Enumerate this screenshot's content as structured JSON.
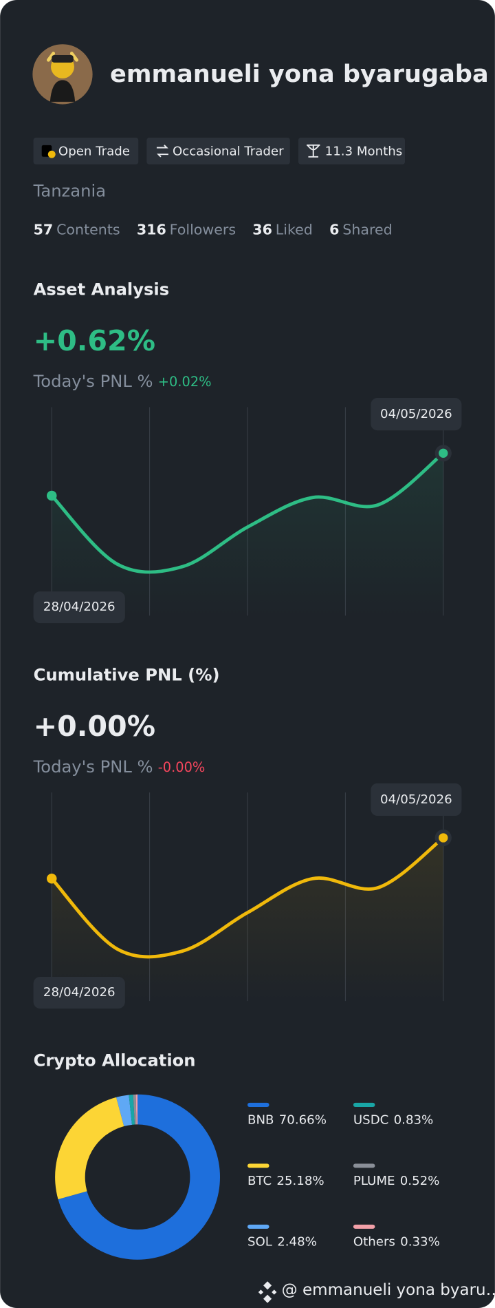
{
  "profile": {
    "name": "emmanueli yona byarugaba",
    "badges": [
      "Open Trade",
      "Occasional Trader",
      "11.3 Months"
    ],
    "country": "Tanzania",
    "stats": [
      {
        "value": 57,
        "label": "Contents"
      },
      {
        "value": 316,
        "label": "Followers"
      },
      {
        "value": 36,
        "label": "Liked"
      },
      {
        "value": 6,
        "label": "Shared"
      }
    ]
  },
  "chart_data": [
    {
      "type": "line",
      "title": "Asset Analysis",
      "headline": "+0.62%",
      "subtitle": "Today's PNL %",
      "today_pnl": "+0.02%",
      "pnl_color": "#2ebd85",
      "categories": [
        "28/04/2026",
        null,
        null,
        null,
        null,
        null,
        "04/05/2026"
      ],
      "values": [
        0.39,
        0.02,
        0.005,
        0.22,
        0.38,
        0.34,
        0.62
      ],
      "color": "#2ebd85",
      "ylim": [
        -0.26,
        0.87
      ]
    },
    {
      "type": "line",
      "title": "Cumulative PNL (%)",
      "headline": "+0.00%",
      "subtitle": "Today's PNL %",
      "today_pnl": "-0.00%",
      "pnl_color": "#f6465d",
      "categories": [
        "28/04/2026",
        null,
        null,
        null,
        null,
        null,
        "04/05/2026"
      ],
      "values": [
        -0.0018,
        -0.0049,
        -0.005,
        -0.0033,
        -0.0018,
        -0.0022,
        0.0
      ],
      "color": "#f0b90b",
      "ylim": [
        -0.0072,
        0.002
      ]
    },
    {
      "type": "pie",
      "title": "Crypto Allocation",
      "categories": [
        "BNB",
        "BTC",
        "SOL",
        "USDC",
        "PLUME",
        "Others"
      ],
      "values": [
        70.66,
        25.18,
        2.48,
        0.83,
        0.52,
        0.33
      ],
      "value_labels": [
        "70.66%",
        "25.18%",
        "2.48%",
        "0.83%",
        "0.52%",
        "0.33%"
      ],
      "colors": [
        "#1e6fdc",
        "#fcd535",
        "#5fa8f5",
        "#19a6a6",
        "#8a8f98",
        "#f2a0a8"
      ]
    }
  ],
  "footer": "@ emmanueli yona byaru…"
}
